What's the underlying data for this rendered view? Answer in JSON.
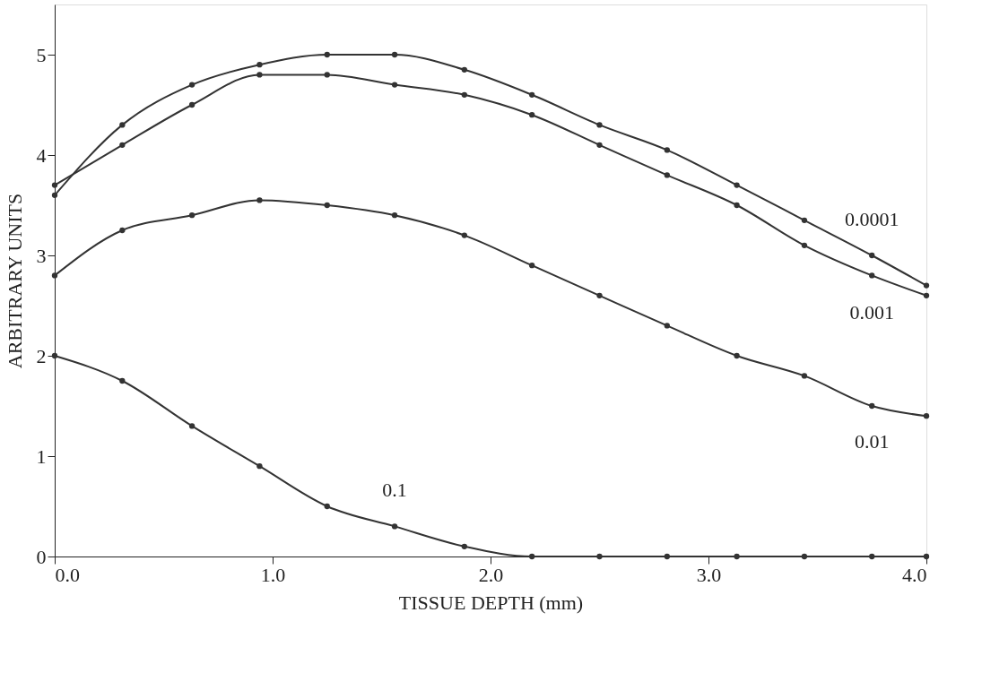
{
  "chart_data": {
    "type": "line",
    "xlabel": "TISSUE DEPTH (mm)",
    "ylabel": "ARBITRARY UNITS",
    "x": [
      0,
      0.31,
      0.63,
      0.94,
      1.25,
      1.56,
      1.88,
      2.19,
      2.5,
      2.81,
      3.13,
      3.44,
      3.75,
      4.0
    ],
    "series": [
      {
        "name": "0.0001",
        "color": "#333333",
        "values": [
          3.6,
          4.3,
          4.7,
          4.9,
          5.0,
          5.0,
          4.85,
          4.6,
          4.3,
          4.05,
          3.7,
          3.35,
          3.0,
          2.7
        ]
      },
      {
        "name": "0.001",
        "color": "#333333",
        "values": [
          3.7,
          4.1,
          4.5,
          4.8,
          4.8,
          4.7,
          4.6,
          4.4,
          4.1,
          3.8,
          3.5,
          3.1,
          2.8,
          2.6
        ]
      },
      {
        "name": "0.01",
        "color": "#333333",
        "values": [
          2.8,
          3.25,
          3.4,
          3.55,
          3.5,
          3.4,
          3.2,
          2.9,
          2.6,
          2.3,
          2.0,
          1.8,
          1.5,
          1.4
        ]
      },
      {
        "name": "0.1",
        "color": "#333333",
        "values": [
          2.0,
          1.75,
          1.3,
          0.9,
          0.5,
          0.3,
          0.1,
          0,
          0,
          0,
          0,
          0,
          0,
          0
        ]
      }
    ],
    "xlim": [
      0,
      4.0
    ],
    "xticks": [
      {
        "value": 0,
        "label": "0.0"
      },
      {
        "value": 1,
        "label": "1.0"
      },
      {
        "value": 2,
        "label": "2.0"
      },
      {
        "value": 3,
        "label": "3.0"
      },
      {
        "value": 4,
        "label": "4.0"
      }
    ],
    "ylim": [
      0,
      5.5
    ],
    "yticks": [
      0,
      1,
      2,
      3,
      4,
      5
    ],
    "grid": false,
    "marker": "circle",
    "line_style": "solid"
  }
}
